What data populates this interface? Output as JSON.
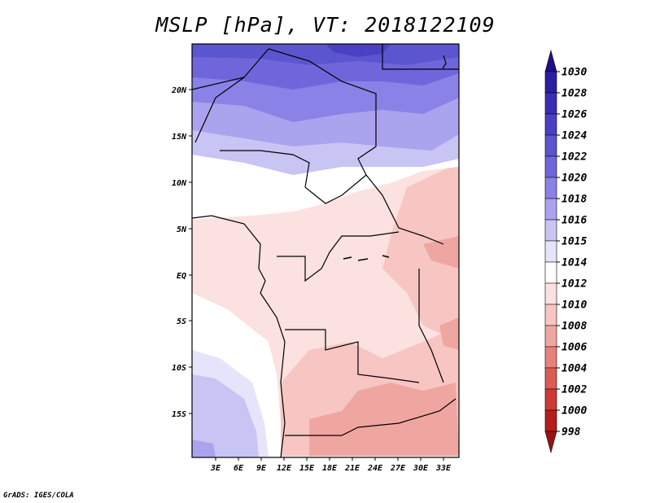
{
  "title": "MSLP [hPa], VT: 2018122109",
  "credit": "GrADS: IGES/COLA",
  "map": {
    "lat_labels": [
      "20N",
      "15N",
      "10N",
      "5N",
      "EQ",
      "5S",
      "10S",
      "15S"
    ],
    "lon_labels": [
      "3E",
      "6E",
      "9E",
      "12E",
      "15E",
      "18E",
      "21E",
      "24E",
      "27E",
      "30E",
      "33E"
    ]
  },
  "colorbar": {
    "labels": [
      "1030",
      "1028",
      "1026",
      "1024",
      "1022",
      "1020",
      "1018",
      "1016",
      "1015",
      "1014",
      "1012",
      "1010",
      "1008",
      "1006",
      "1004",
      "1002",
      "1000",
      "998"
    ],
    "colors": [
      "#1e0f8c",
      "#2a1fa0",
      "#3a2db4",
      "#4b3fc4",
      "#5c55d0",
      "#7066dc",
      "#8a82e6",
      "#aaa3ee",
      "#c8c4f4",
      "#e6e4fa",
      "#ffffff",
      "#fbe1df",
      "#f7c6c2",
      "#f0a6a0",
      "#e6827a",
      "#dc5c54",
      "#cc3a34",
      "#b41e1c",
      "#961414"
    ]
  }
}
